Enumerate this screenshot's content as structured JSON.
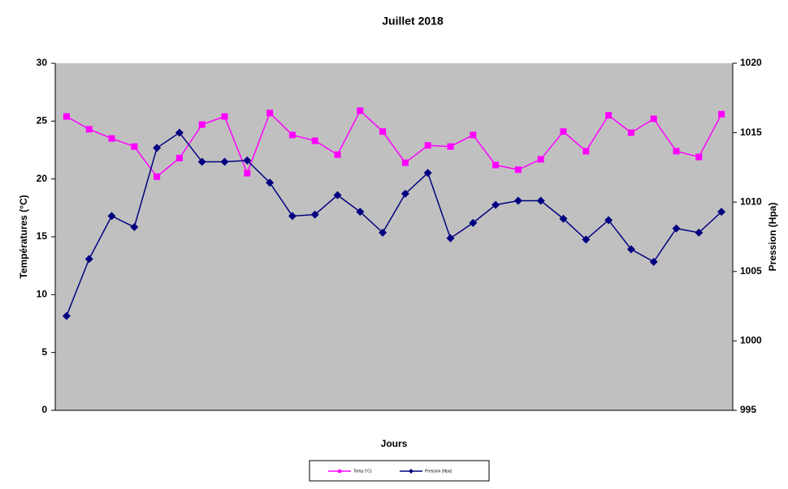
{
  "chart_data": {
    "type": "line",
    "title": "Juillet 2018",
    "x_label": "Jours",
    "y_label": "Températures (°C)",
    "y2_label": "Pression (Hpa)",
    "categories": [
      null,
      null,
      null,
      null,
      null,
      null,
      null,
      null,
      null,
      null,
      null,
      null,
      null,
      null,
      null,
      null,
      null,
      null,
      null,
      null,
      null,
      null,
      null,
      null,
      null,
      null,
      null,
      null,
      null,
      null
    ],
    "series": [
      {
        "name": "Temp (°C)",
        "color": "#ff00ff",
        "marker": "square",
        "values": [
          25.4,
          24.3,
          23.5,
          22.8,
          20.2,
          21.8,
          24.7,
          25.4,
          20.5,
          25.7,
          23.8,
          23.3,
          22.1,
          25.9,
          24.1,
          21.4,
          22.9,
          22.8,
          23.8,
          21.2,
          20.8,
          21.7,
          24.1,
          22.4,
          25.5,
          24.0,
          25.2,
          22.4,
          21.9,
          25.6
        ]
      },
      {
        "name": "Pression (Hpa)",
        "color": "#000080",
        "marker": "diamond",
        "axis": "y2",
        "values": [
          1001.8,
          1005.9,
          1009.0,
          1008.2,
          1013.9,
          1015.0,
          1012.9,
          1012.9,
          1013.0,
          1011.4,
          1009.0,
          1009.1,
          1010.5,
          1009.3,
          1007.8,
          1010.6,
          1012.1,
          1007.4,
          1008.5,
          1009.8,
          1010.1,
          1010.1,
          1008.8,
          1007.3,
          1008.7,
          1006.6,
          1005.7,
          1008.1,
          1007.8,
          1009.3
        ]
      }
    ],
    "ylim": [
      0,
      30
    ],
    "yticks": [
      0,
      5,
      10,
      15,
      20,
      25,
      30
    ],
    "y2lim": [
      995,
      1020
    ],
    "y2ticks": [
      995,
      1000,
      1005,
      1010,
      1015,
      1020
    ],
    "legend": "bottom"
  }
}
